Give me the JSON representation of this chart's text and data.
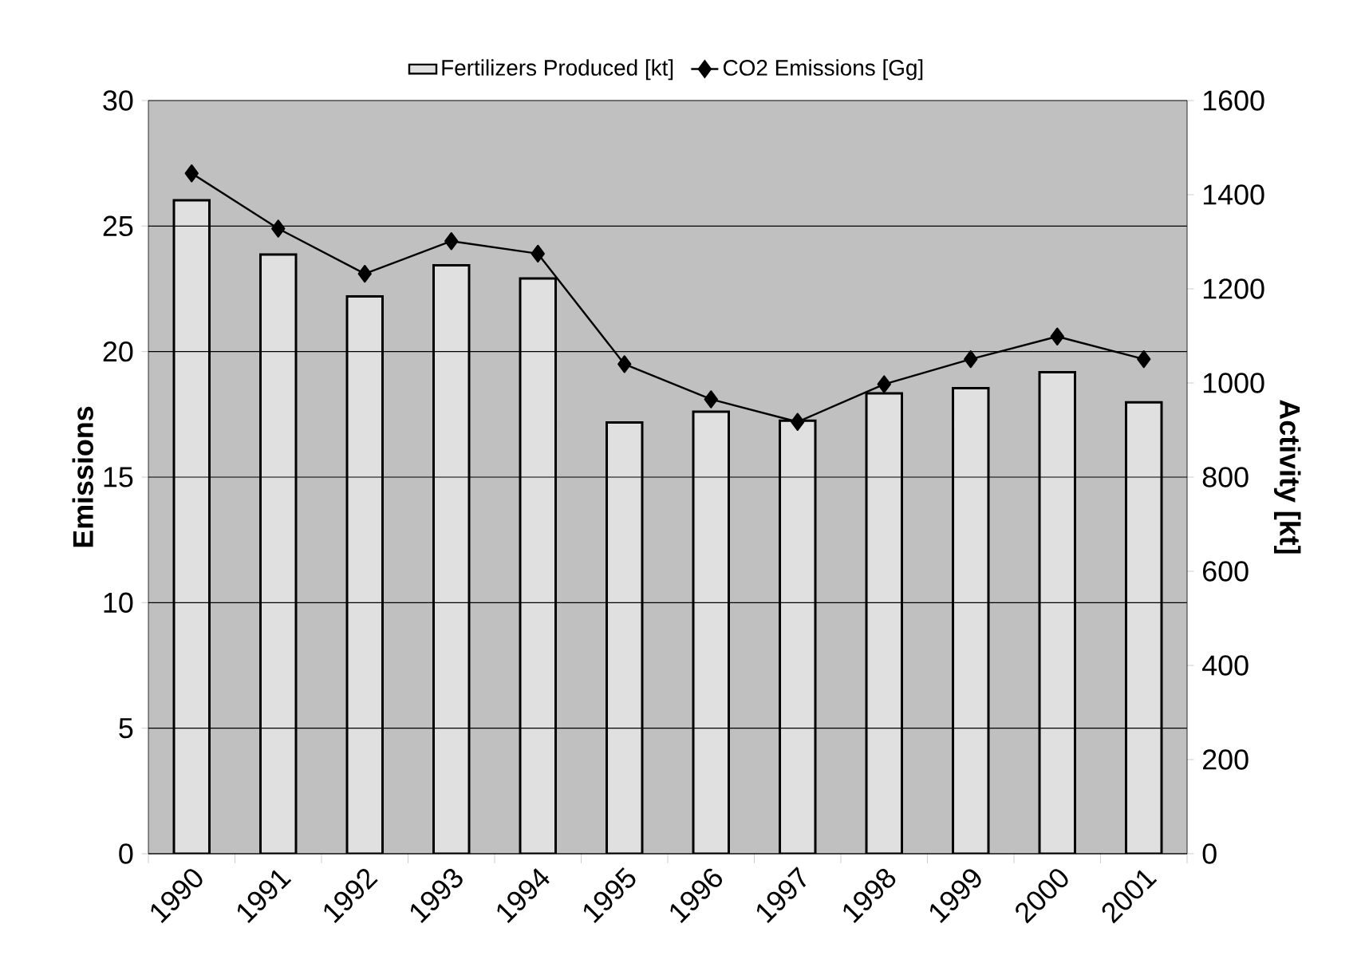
{
  "chart_data": {
    "type": "bar",
    "categories": [
      "1990",
      "1991",
      "1992",
      "1993",
      "1994",
      "1995",
      "1996",
      "1997",
      "1998",
      "1999",
      "2000",
      "2001"
    ],
    "series": [
      {
        "name": "Fertilizers Produced [kt]",
        "axis": "y2",
        "color": "#e0e0e0",
        "values": [
          1388,
          1273,
          1184,
          1250,
          1222,
          916,
          939,
          920,
          978,
          989,
          1023,
          959
        ]
      },
      {
        "name": "CO2 Emissions [Gg]",
        "type": "line",
        "axis": "y",
        "color": "#000000",
        "marker": "diamond",
        "values": [
          27.1,
          24.9,
          23.1,
          24.4,
          23.9,
          19.5,
          18.1,
          17.2,
          18.7,
          19.7,
          20.6,
          19.7
        ]
      }
    ],
    "ylabel": "Emissions",
    "y2label": "Activity [kt]",
    "ylim": [
      0,
      30
    ],
    "yticks": [
      0,
      5,
      10,
      15,
      20,
      25,
      30
    ],
    "y2lim": [
      0,
      1600
    ],
    "y2ticks": [
      0,
      200,
      400,
      600,
      800,
      1000,
      1200,
      1400,
      1600
    ],
    "grid": "y",
    "legend": "top"
  }
}
